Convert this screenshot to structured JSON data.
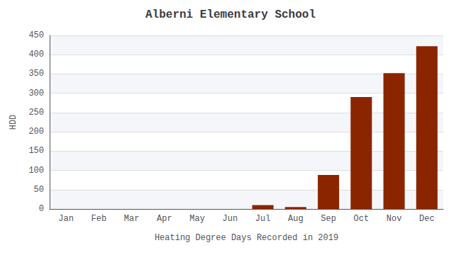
{
  "chart_data": {
    "type": "bar",
    "title": "Alberni Elementary School",
    "xlabel": "Heating Degree Days Recorded in 2019",
    "ylabel": "HDD",
    "categories": [
      "Jan",
      "Feb",
      "Mar",
      "Apr",
      "May",
      "Jun",
      "Jul",
      "Aug",
      "Sep",
      "Oct",
      "Nov",
      "Dec"
    ],
    "values": [
      0,
      0,
      0,
      0,
      0,
      0,
      10,
      5,
      88,
      290,
      352,
      422
    ],
    "color": "#8B2500",
    "ylim": [
      0,
      450
    ],
    "yticks": [
      0,
      50,
      100,
      150,
      200,
      250,
      300,
      350,
      400,
      450
    ],
    "grid": true
  }
}
